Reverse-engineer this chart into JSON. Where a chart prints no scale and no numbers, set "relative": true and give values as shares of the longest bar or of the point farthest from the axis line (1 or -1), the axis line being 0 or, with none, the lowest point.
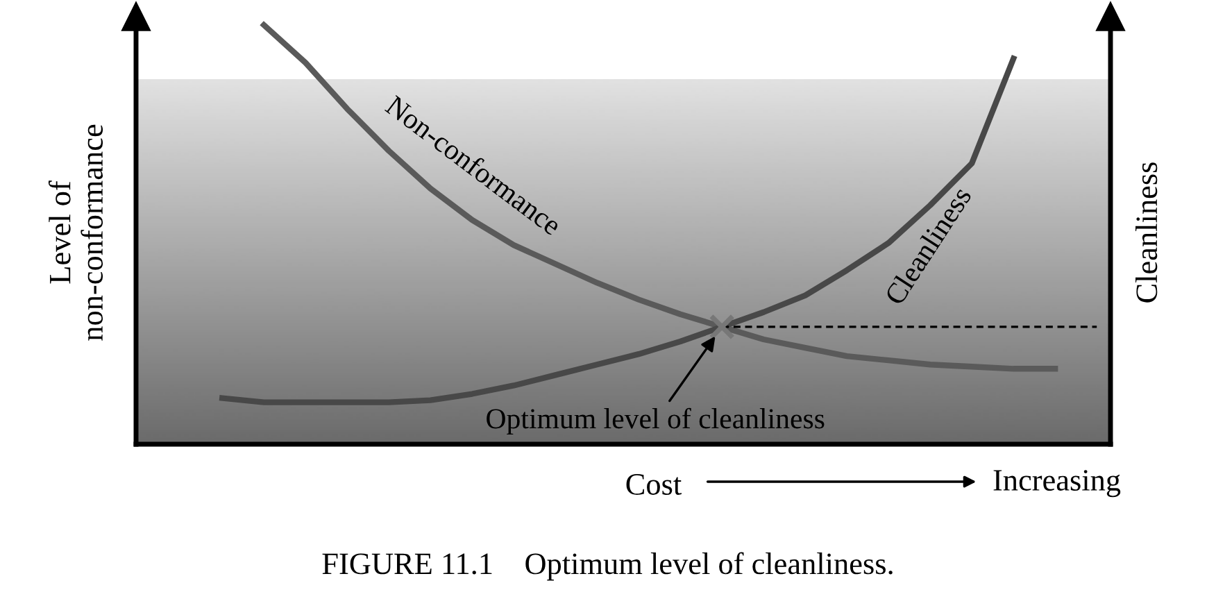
{
  "chart_data": {
    "type": "line",
    "relative": true,
    "legend": false,
    "xlabel": "Cost",
    "ylabel": "Level of\nnon-conformance",
    "y2label": "Cleanliness",
    "categories": [
      null,
      null,
      null,
      null,
      null,
      null,
      null,
      null,
      null,
      null,
      null,
      null,
      null,
      null,
      null,
      null,
      null,
      null,
      null,
      null,
      null,
      null
    ],
    "series": [
      {
        "name": "Non-conformance",
        "color": "#5a5a5a",
        "values": [
          null,
          1.0,
          0.91,
          0.8,
          0.7,
          0.61,
          0.535,
          0.475,
          0.43,
          0.385,
          0.345,
          0.31,
          0.28,
          0.25,
          0.23,
          0.21,
          0.2,
          0.19,
          0.185,
          0.18,
          0.18,
          null
        ]
      },
      {
        "name": "Cleanliness",
        "color": "#484848",
        "values": [
          0.11,
          0.1,
          0.1,
          0.1,
          0.1,
          0.105,
          0.12,
          0.14,
          0.165,
          0.19,
          0.215,
          0.245,
          0.28,
          0.315,
          0.355,
          0.415,
          0.48,
          0.57,
          0.67,
          0.92,
          null,
          null
        ]
      }
    ],
    "ref_lines": [
      {
        "axis": "y",
        "value": 0.28,
        "color": "#000000",
        "line_style": "dashed"
      }
    ],
    "annotations": [
      "Optimum level of cleanliness",
      "Increasing",
      "FIGURE 11.1    Optimum level of cleanliness."
    ]
  }
}
